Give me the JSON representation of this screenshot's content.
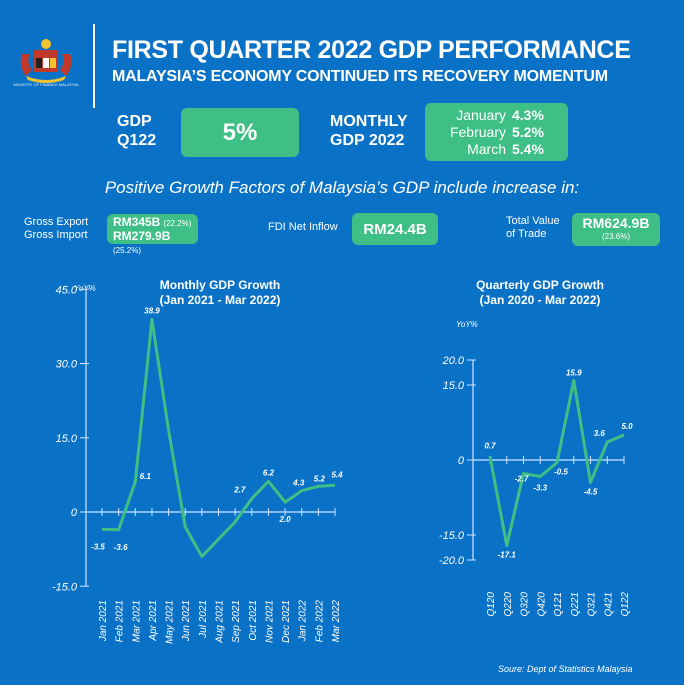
{
  "header": {
    "logo_caption": "MINISTRY OF FINANCE MALAYSIA",
    "title": "FIRST QUARTER 2022 GDP PERFORMANCE",
    "subtitle": "MALAYSIA’S ECONOMY CONTINUED ITS RECOVERY MOMENTUM"
  },
  "kpis": {
    "gdp_label_line1": "GDP",
    "gdp_label_line2": "Q122",
    "gdp_value": "5%",
    "monthly_label_line1": "MONTHLY",
    "monthly_label_line2": "GDP 2022",
    "months": [
      {
        "name": "January",
        "value": "4.3%"
      },
      {
        "name": "February",
        "value": "5.2%"
      },
      {
        "name": "March",
        "value": "5.4%"
      }
    ]
  },
  "factors": {
    "title": "Positive Growth Factors of Malaysia’s GDP include increase in:",
    "gross_export_label": "Gross Export",
    "gross_import_label": "Gross Import",
    "gross_export_value": "RM345B",
    "gross_export_pct": "(22.2%)",
    "gross_import_value": "RM279.9B",
    "gross_import_pct": "(25.2%)",
    "fdi_label": "FDI Net Inflow",
    "fdi_value": "RM24.4B",
    "trade_label_line1": "Total Value",
    "trade_label_line2": "of Trade",
    "trade_value": "RM624.9B",
    "trade_pct": "(23.6%)"
  },
  "colors": {
    "background": "#0a72c6",
    "accent_green": "#3dbf85",
    "line_green": "#3dbf85",
    "axis": "#cfe3ff"
  },
  "chart_data": [
    {
      "type": "line",
      "title": "Monthly GDP Growth",
      "subtitle": "(Jan 2021 - Mar 2022)",
      "ylabel": "YoY%",
      "xlabel": "",
      "ylim": [
        -15,
        45
      ],
      "yticks": [
        "45.0",
        "30.0",
        "15.0",
        "0",
        "-15.0"
      ],
      "ytick_values": [
        45,
        30,
        15,
        0,
        -15
      ],
      "categories": [
        "Jan 2021",
        "Feb 2021",
        "Mar 2021",
        "Apr 2021",
        "May 2021",
        "Jun 2021",
        "Jul 2021",
        "Aug 2021",
        "Sep 2021",
        "Oct 2021",
        "Nov 2021",
        "Dec 2021",
        "Jan 2022",
        "Feb 2022",
        "Mar 2022"
      ],
      "values": [
        -3.5,
        -3.6,
        6.1,
        38.9,
        16.5,
        -3.0,
        -9.0,
        -5.5,
        -2.0,
        2.7,
        6.2,
        2.0,
        4.3,
        5.2,
        5.4
      ],
      "data_labels": [
        {
          "index": 0,
          "text": "-3.5"
        },
        {
          "index": 1,
          "text": "-3.6"
        },
        {
          "index": 2,
          "text": "6.1"
        },
        {
          "index": 3,
          "text": "38.9"
        },
        {
          "index": 9,
          "text": "2.7"
        },
        {
          "index": 10,
          "text": "6.2"
        },
        {
          "index": 11,
          "text": "2.0"
        },
        {
          "index": 12,
          "text": "4.3"
        },
        {
          "index": 13,
          "text": "5.2"
        },
        {
          "index": 14,
          "text": "5.4"
        }
      ],
      "grid": false
    },
    {
      "type": "line",
      "title": "Quarterly GDP Growth",
      "subtitle": "(Jan 2020 - Mar 2022)",
      "ylabel": "YoY%",
      "xlabel": "",
      "ylim": [
        -20,
        20
      ],
      "yticks": [
        "20.0",
        "15.0",
        "0",
        "-15.0",
        "-20.0"
      ],
      "ytick_values": [
        20,
        15,
        0,
        -15,
        -20
      ],
      "categories": [
        "Q120",
        "Q220",
        "Q320",
        "Q420",
        "Q121",
        "Q221",
        "Q321",
        "Q421",
        "Q122"
      ],
      "values": [
        0.7,
        -17.1,
        -2.7,
        -3.3,
        -0.5,
        15.9,
        -4.5,
        3.6,
        5.0
      ],
      "data_labels": [
        {
          "index": 0,
          "text": "0.7"
        },
        {
          "index": 1,
          "text": "-17.1"
        },
        {
          "index": 2,
          "text": "-2.7"
        },
        {
          "index": 3,
          "text": "-3.3"
        },
        {
          "index": 4,
          "text": "-0.5"
        },
        {
          "index": 5,
          "text": "15.9"
        },
        {
          "index": 6,
          "text": "-4.5"
        },
        {
          "index": 7,
          "text": "3.6"
        },
        {
          "index": 8,
          "text": "5.0"
        }
      ],
      "grid": false
    }
  ],
  "source": "Soure: Dept of Statistics Malaysia"
}
